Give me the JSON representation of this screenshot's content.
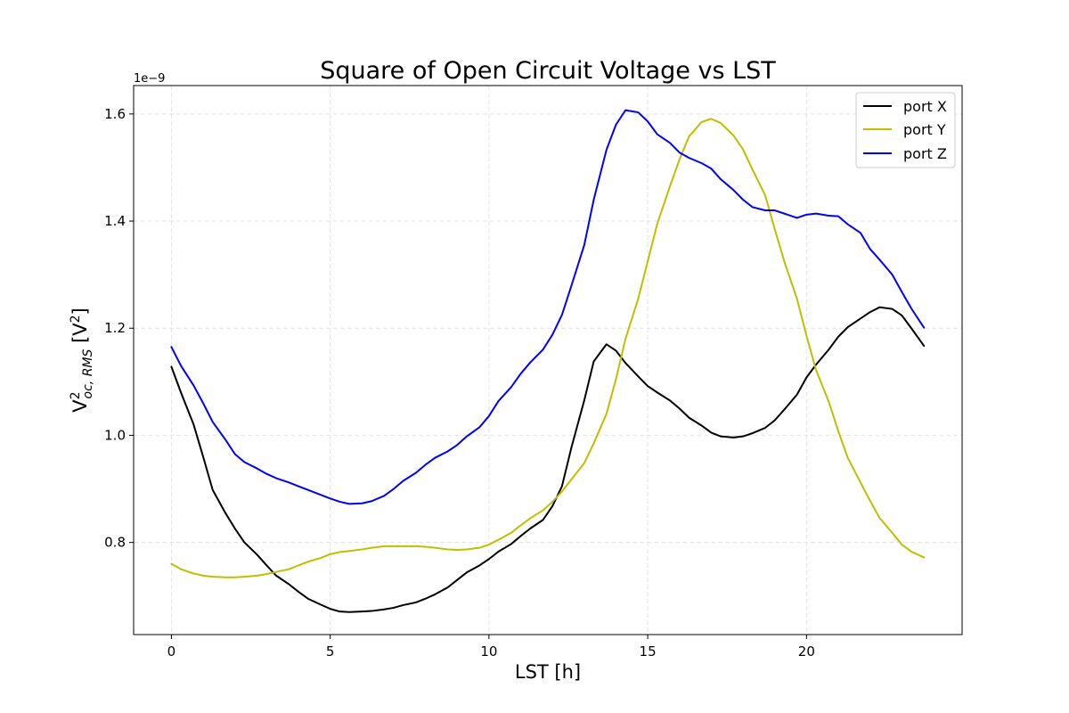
{
  "chart_data": {
    "type": "line",
    "title": "Square of Open Circuit Voltage vs LST",
    "xlabel": "LST [h]",
    "ylabel": {
      "base": "V",
      "superscript": "2",
      "subscript": "oc, RMS",
      "unit_open": " [V",
      "unit_superscript": "2",
      "unit_close": "]"
    },
    "y_offset_label": "1e−9",
    "xlim": [
      -1.19,
      24.9
    ],
    "ylim": [
      0.628,
      1.653
    ],
    "x_ticks": [
      0,
      5,
      10,
      15,
      20
    ],
    "x_tick_labels": [
      "0",
      "5",
      "10",
      "15",
      "20"
    ],
    "y_ticks": [
      0.8,
      1.0,
      1.2,
      1.4,
      1.6
    ],
    "y_tick_labels": [
      "0.8",
      "1.0",
      "1.2",
      "1.4",
      "1.6"
    ],
    "grid": true,
    "legend_position": "top-right",
    "series": [
      {
        "name": "port X",
        "color": "#000000",
        "x": [
          0,
          0.3,
          0.7,
          1.0,
          1.3,
          1.7,
          2.0,
          2.3,
          2.7,
          3.0,
          3.3,
          3.7,
          4.0,
          4.3,
          4.7,
          5.0,
          5.3,
          5.6,
          6.0,
          6.3,
          6.7,
          7.0,
          7.3,
          7.7,
          8.0,
          8.3,
          8.7,
          9.0,
          9.3,
          9.7,
          10.0,
          10.3,
          10.7,
          11.0,
          11.3,
          11.7,
          12.0,
          12.3,
          12.6,
          13.0,
          13.3,
          13.7,
          14.0,
          14.3,
          14.7,
          15.0,
          15.3,
          15.7,
          16.0,
          16.3,
          16.7,
          17.0,
          17.3,
          17.7,
          18.0,
          18.3,
          18.7,
          19.0,
          19.3,
          19.7,
          20.0,
          20.3,
          20.7,
          21.0,
          21.3,
          21.7,
          22.0,
          22.3,
          22.7,
          23.0,
          23.3,
          23.7
        ],
        "y": [
          1.128,
          1.08,
          1.02,
          0.96,
          0.898,
          0.855,
          0.826,
          0.8,
          0.777,
          0.757,
          0.738,
          0.722,
          0.708,
          0.695,
          0.684,
          0.676,
          0.671,
          0.67,
          0.671,
          0.672,
          0.675,
          0.678,
          0.683,
          0.688,
          0.695,
          0.703,
          0.716,
          0.73,
          0.744,
          0.757,
          0.769,
          0.783,
          0.797,
          0.812,
          0.826,
          0.842,
          0.868,
          0.905,
          0.978,
          1.065,
          1.138,
          1.17,
          1.158,
          1.135,
          1.11,
          1.092,
          1.08,
          1.065,
          1.05,
          1.033,
          1.018,
          1.005,
          0.998,
          0.996,
          0.998,
          1.004,
          1.014,
          1.028,
          1.048,
          1.076,
          1.108,
          1.132,
          1.16,
          1.184,
          1.202,
          1.218,
          1.23,
          1.239,
          1.236,
          1.224,
          1.2,
          1.167
        ]
      },
      {
        "name": "port Y",
        "color": "#bfbf00",
        "x": [
          0,
          0.3,
          0.7,
          1.0,
          1.3,
          1.7,
          2.0,
          2.3,
          2.7,
          3.0,
          3.3,
          3.7,
          4.0,
          4.3,
          4.7,
          5.0,
          5.3,
          5.6,
          6.0,
          6.3,
          6.7,
          7.0,
          7.3,
          7.7,
          8.0,
          8.3,
          8.7,
          9.0,
          9.3,
          9.7,
          10.0,
          10.3,
          10.7,
          11.0,
          11.3,
          11.7,
          12.0,
          12.3,
          12.6,
          13.0,
          13.3,
          13.7,
          14.0,
          14.3,
          14.7,
          15.0,
          15.3,
          15.7,
          16.0,
          16.3,
          16.7,
          17.0,
          17.3,
          17.7,
          18.0,
          18.3,
          18.7,
          19.0,
          19.3,
          19.7,
          20.0,
          20.3,
          20.7,
          21.0,
          21.3,
          21.7,
          22.0,
          22.3,
          22.7,
          23.0,
          23.3,
          23.7
        ],
        "y": [
          0.76,
          0.75,
          0.742,
          0.738,
          0.736,
          0.735,
          0.735,
          0.736,
          0.738,
          0.741,
          0.745,
          0.75,
          0.757,
          0.764,
          0.771,
          0.778,
          0.782,
          0.784,
          0.787,
          0.79,
          0.793,
          0.793,
          0.793,
          0.793,
          0.792,
          0.79,
          0.787,
          0.786,
          0.787,
          0.79,
          0.796,
          0.805,
          0.818,
          0.832,
          0.845,
          0.86,
          0.876,
          0.895,
          0.918,
          0.948,
          0.985,
          1.04,
          1.105,
          1.18,
          1.255,
          1.325,
          1.395,
          1.465,
          1.515,
          1.558,
          1.585,
          1.591,
          1.583,
          1.56,
          1.534,
          1.496,
          1.448,
          1.385,
          1.325,
          1.255,
          1.186,
          1.122,
          1.063,
          1.008,
          0.958,
          0.912,
          0.878,
          0.846,
          0.818,
          0.796,
          0.783,
          0.772
        ]
      },
      {
        "name": "port Z",
        "color": "#0000ff",
        "x": [
          0,
          0.3,
          0.7,
          1.0,
          1.3,
          1.7,
          2.0,
          2.3,
          2.7,
          3.0,
          3.3,
          3.7,
          4.0,
          4.3,
          4.7,
          5.0,
          5.3,
          5.6,
          6.0,
          6.3,
          6.7,
          7.0,
          7.3,
          7.7,
          8.0,
          8.3,
          8.7,
          9.0,
          9.3,
          9.7,
          10.0,
          10.3,
          10.7,
          11.0,
          11.3,
          11.7,
          12.0,
          12.3,
          12.6,
          13.0,
          13.3,
          13.7,
          14.0,
          14.3,
          14.7,
          15.0,
          15.3,
          15.7,
          16.0,
          16.3,
          16.7,
          17.0,
          17.3,
          17.7,
          18.0,
          18.3,
          18.7,
          19.0,
          19.3,
          19.7,
          20.0,
          20.3,
          20.7,
          21.0,
          21.3,
          21.7,
          22.0,
          22.3,
          22.7,
          23.0,
          23.3,
          23.7
        ],
        "y": [
          1.165,
          1.13,
          1.093,
          1.06,
          1.025,
          0.992,
          0.965,
          0.95,
          0.938,
          0.928,
          0.92,
          0.912,
          0.905,
          0.898,
          0.889,
          0.882,
          0.876,
          0.872,
          0.873,
          0.877,
          0.887,
          0.9,
          0.915,
          0.93,
          0.945,
          0.958,
          0.97,
          0.982,
          0.998,
          1.015,
          1.036,
          1.064,
          1.09,
          1.115,
          1.136,
          1.16,
          1.188,
          1.225,
          1.28,
          1.355,
          1.44,
          1.533,
          1.58,
          1.607,
          1.603,
          1.586,
          1.562,
          1.546,
          1.528,
          1.518,
          1.508,
          1.498,
          1.478,
          1.458,
          1.44,
          1.426,
          1.42,
          1.42,
          1.414,
          1.406,
          1.412,
          1.414,
          1.41,
          1.409,
          1.394,
          1.378,
          1.348,
          1.328,
          1.3,
          1.268,
          1.237,
          1.201
        ]
      }
    ]
  }
}
